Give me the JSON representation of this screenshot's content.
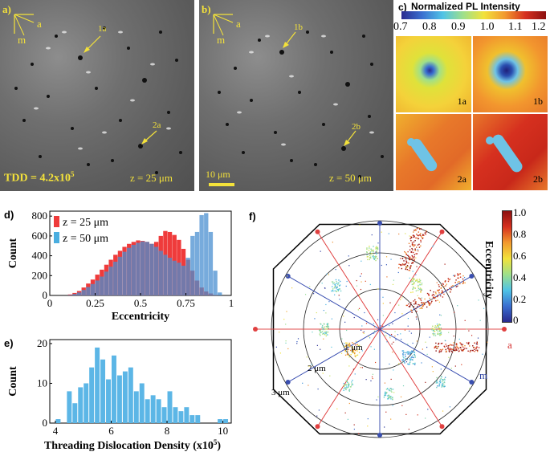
{
  "panels": {
    "a": {
      "label": "a)",
      "axis_a": "a",
      "axis_m": "m",
      "defect1": "1a",
      "defect2": "2a",
      "tdd": "TDD = 4.2x10",
      "tdd_exp": "5",
      "z": "z = 25 μm"
    },
    "b": {
      "label": "b)",
      "axis_a": "a",
      "axis_m": "m",
      "defect1": "1b",
      "defect2": "2b",
      "scalebar": "10 μm",
      "z": "z = 50 μm"
    },
    "c": {
      "label": "c)",
      "title": "Normalized PL Intensity",
      "ticks": [
        "0.7",
        "0.8",
        "0.9",
        "1.0",
        "1.1",
        "1.2"
      ],
      "tiles": [
        "1a",
        "1b",
        "2a",
        "2b"
      ]
    },
    "d": {
      "label": "d)"
    },
    "e": {
      "label": "e)"
    },
    "f": {
      "label": "f)",
      "colorbar_title": "Eccentricity",
      "colorbar_ticks": [
        "1.0",
        "0.8",
        "0.6",
        "0.4",
        "0.2",
        "0"
      ],
      "ring_labels": [
        "1 μm",
        "2 μm",
        "3 μm"
      ],
      "axis_a": "a",
      "axis_m": "m"
    }
  },
  "colors": {
    "yellow": "#f4e23a",
    "red_series": "#ef3b3b",
    "blue_series": "#4aaee0",
    "overlap": "#4a63ad",
    "hist_e": "#5cb6e6"
  },
  "chart_data": [
    {
      "id": "eccentricity-histogram",
      "type": "bar",
      "title": "",
      "xlabel": "Eccentricity",
      "ylabel": "Count",
      "xlim": [
        0,
        1
      ],
      "ylim": [
        0,
        850
      ],
      "xticks": [
        "0",
        "0.25",
        "0.5",
        "0.75",
        "1"
      ],
      "yticks": [
        "0",
        "200",
        "400",
        "600",
        "800"
      ],
      "bin_width": 0.025,
      "legend": [
        "z = 25 μm",
        "z = 50 μm"
      ],
      "legend_position": "top-left",
      "series": [
        {
          "name": "z = 25 μm",
          "bin_starts": [
            0.1,
            0.125,
            0.15,
            0.175,
            0.2,
            0.225,
            0.25,
            0.275,
            0.3,
            0.325,
            0.35,
            0.375,
            0.4,
            0.425,
            0.45,
            0.475,
            0.5,
            0.525,
            0.55,
            0.575,
            0.6,
            0.625,
            0.65,
            0.675,
            0.7,
            0.725,
            0.75,
            0.775,
            0.8,
            0.825,
            0.85,
            0.875,
            0.9
          ],
          "values": [
            10,
            25,
            45,
            80,
            120,
            160,
            210,
            260,
            310,
            360,
            410,
            450,
            490,
            520,
            540,
            555,
            550,
            540,
            520,
            540,
            600,
            650,
            640,
            610,
            560,
            470,
            360,
            250,
            150,
            80,
            40,
            20,
            5
          ]
        },
        {
          "name": "z = 50 μm",
          "bin_starts": [
            0.1,
            0.125,
            0.15,
            0.175,
            0.2,
            0.225,
            0.25,
            0.275,
            0.3,
            0.325,
            0.35,
            0.375,
            0.4,
            0.425,
            0.45,
            0.475,
            0.5,
            0.525,
            0.55,
            0.575,
            0.6,
            0.625,
            0.65,
            0.675,
            0.7,
            0.725,
            0.75,
            0.775,
            0.8,
            0.825,
            0.85,
            0.875,
            0.9,
            0.925
          ],
          "values": [
            5,
            15,
            30,
            55,
            85,
            115,
            150,
            190,
            240,
            290,
            340,
            390,
            440,
            480,
            510,
            530,
            545,
            540,
            520,
            490,
            450,
            410,
            380,
            350,
            330,
            300,
            380,
            600,
            640,
            810,
            830,
            640,
            250,
            30
          ]
        }
      ]
    },
    {
      "id": "tdd-histogram",
      "type": "bar",
      "title": "",
      "xlabel": "Threading Dislocation Density (x10",
      "xlabel_exp": "5",
      "xlabel_close": ")",
      "ylabel": "Count",
      "xlim": [
        3.8,
        10.3
      ],
      "ylim": [
        0,
        21
      ],
      "xticks": [
        "4",
        "6",
        "8",
        "10"
      ],
      "yticks": [
        "0",
        "10",
        "20"
      ],
      "bin_width": 0.2,
      "series": [
        {
          "name": "TDD",
          "bin_starts": [
            4.0,
            4.2,
            4.4,
            4.6,
            4.8,
            5.0,
            5.2,
            5.4,
            5.6,
            5.8,
            6.0,
            6.2,
            6.4,
            6.6,
            6.8,
            7.0,
            7.2,
            7.4,
            7.6,
            7.8,
            8.0,
            8.2,
            8.4,
            8.6,
            8.8,
            9.0,
            9.2,
            9.4,
            9.6,
            9.8,
            10.0
          ],
          "values": [
            1,
            0,
            8,
            5,
            9,
            10,
            14,
            19,
            16,
            11,
            17,
            12,
            13,
            14,
            8,
            10,
            6,
            7,
            6,
            4,
            8,
            4,
            3,
            4,
            2,
            2,
            0,
            0,
            0,
            1,
            1
          ]
        }
      ]
    }
  ]
}
